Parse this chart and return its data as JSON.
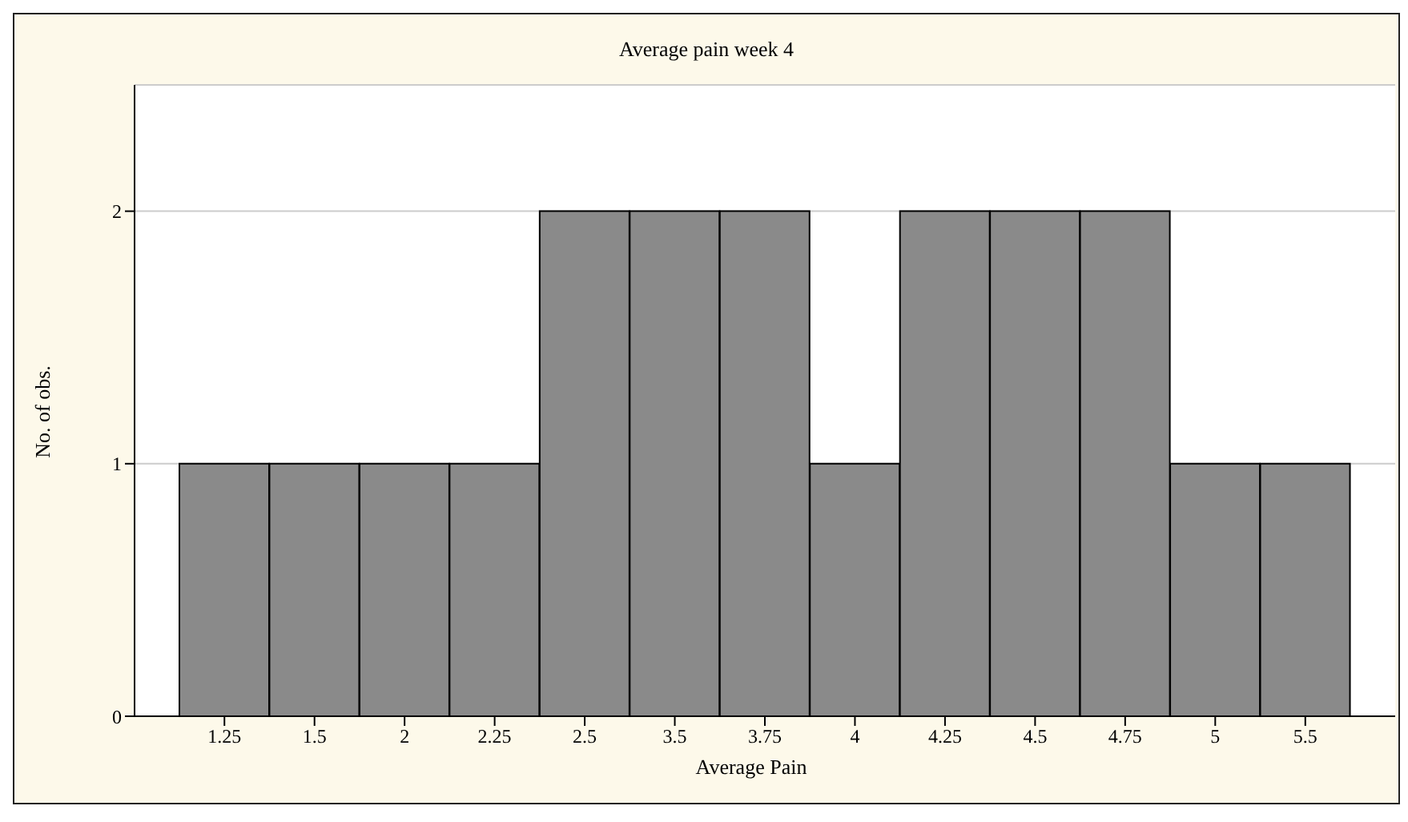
{
  "chart_data": {
    "type": "bar",
    "title": "Average pain week 4",
    "xlabel": "Average Pain",
    "ylabel": "No. of obs.",
    "categories": [
      "1.25",
      "1.5",
      "2",
      "2.25",
      "2.5",
      "3.5",
      "3.75",
      "4",
      "4.25",
      "4.5",
      "4.75",
      "5",
      "5.5"
    ],
    "series": [
      {
        "color": "#8a8a8a",
        "values": [
          1,
          1,
          1,
          1,
          2,
          2,
          2,
          1,
          2,
          2,
          2,
          1,
          1
        ]
      }
    ],
    "ylim": [
      0,
      2.5
    ],
    "yticks": [
      0,
      1,
      2
    ],
    "grid": "y"
  }
}
